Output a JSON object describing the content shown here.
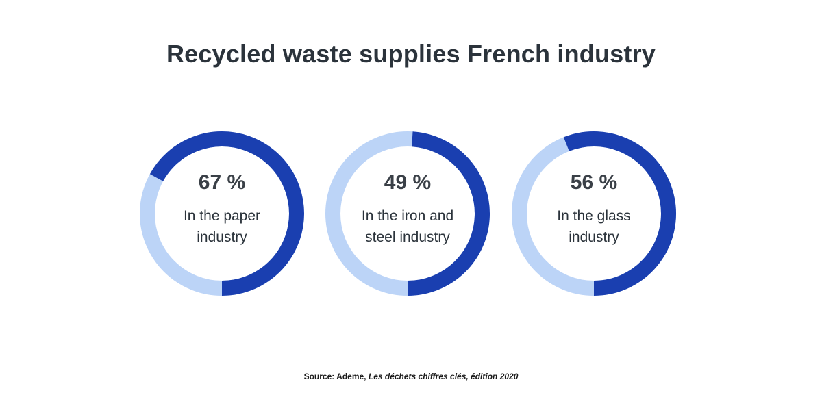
{
  "title": "Recycled waste supplies French industry",
  "colors": {
    "recycled": "#1a3fb0",
    "remainder": "#bcd4f7",
    "text": "#2b333b"
  },
  "chart_data": {
    "type": "pie",
    "variant": "donut",
    "title": "Recycled waste supplies French industry",
    "unit": "%",
    "categories": [
      "In the paper industry",
      "In the iron and steel industry",
      "In the glass industry"
    ],
    "values": [
      67,
      49,
      56
    ],
    "value_labels": [
      "67 %",
      "49 %",
      "56 %"
    ],
    "direction": "counterclockwise from bottom"
  },
  "source": {
    "label": "Source: Ademe,",
    "title": "Les déchets chiffres clés, édition 2020"
  }
}
